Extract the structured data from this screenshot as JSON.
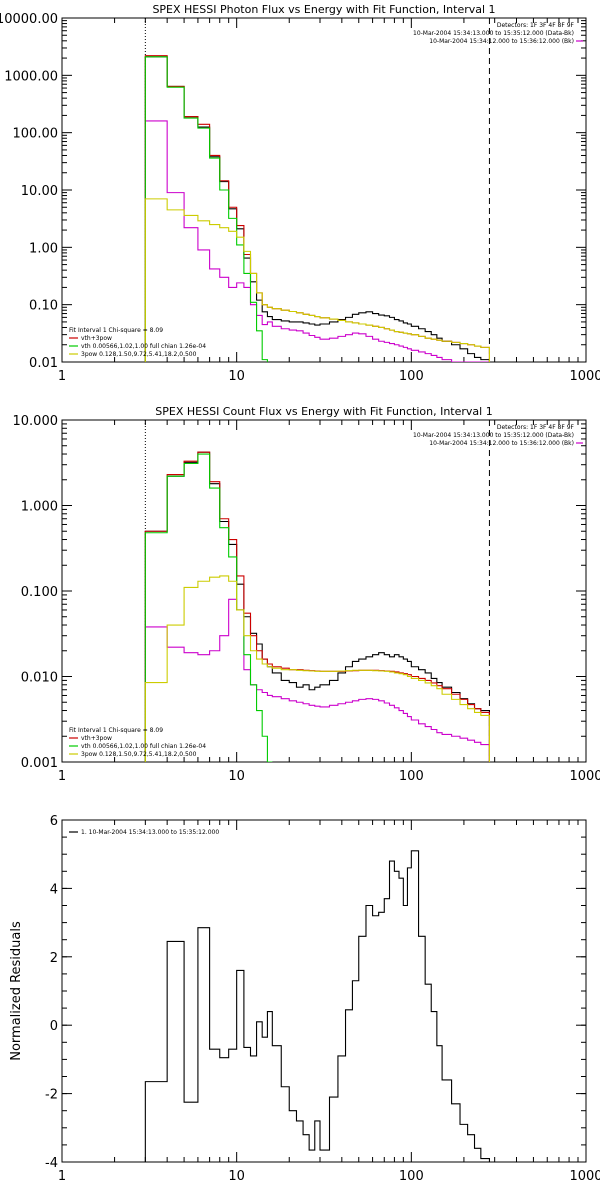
{
  "chart_data": [
    {
      "type": "line",
      "title": "SPEX HESSI Photon Flux vs Energy with Fit Function, Interval 1",
      "xscale": "log",
      "yscale": "log",
      "xlim": [
        1,
        1000
      ],
      "ylim": [
        0.01,
        10000
      ],
      "xticks": [
        {
          "v": 1,
          "label": "1"
        },
        {
          "v": 10,
          "label": "10"
        },
        {
          "v": 100,
          "label": "100"
        },
        {
          "v": 1000,
          "label": "1000"
        }
      ],
      "yticks": [
        {
          "v": 0.01,
          "label": "0.01"
        },
        {
          "v": 0.1,
          "label": "0.10"
        },
        {
          "v": 1,
          "label": "1.00"
        },
        {
          "v": 10,
          "label": "10.00"
        },
        {
          "v": 100,
          "label": "100.00"
        },
        {
          "v": 1000,
          "label": "1000.00"
        },
        {
          "v": 10000,
          "label": "10000.00"
        }
      ],
      "vlines": [
        {
          "x": 3,
          "style": "dotted"
        },
        {
          "x": 280,
          "style": "dashed"
        }
      ],
      "info_text": [
        "Detectors: 1F 3F 4F 8F 9F",
        "10-Mar-2004 15:34:13.000 to 15:35:12.000 (Data-Bk)",
        "10-Mar-2004 15:34:12.000 to 15:36:12.000 (Bk)"
      ],
      "legend_text": [
        "Fit Interval 1   Chi-square = 8.09",
        "vth+3pow",
        "vth 0.00566,1.02,1.00  full chian 1.26e-04",
        "3pow 0.128,1.50,9.72,5.41,18.2,0.500"
      ],
      "legend_colors": [
        "#000000",
        "#cc0000",
        "#00cc00",
        "#cccc00"
      ],
      "bin_edges": [
        3,
        4,
        5,
        6,
        7,
        8,
        9,
        10,
        11,
        12,
        13,
        14,
        15,
        16,
        18,
        20,
        22,
        24,
        26,
        28,
        30,
        34,
        38,
        42,
        46,
        50,
        55,
        60,
        65,
        70,
        75,
        80,
        85,
        90,
        95,
        100,
        110,
        120,
        130,
        140,
        150,
        170,
        190,
        210,
        230,
        250,
        280
      ],
      "series": [
        {
          "name": "Data-Bk",
          "color": "#000000",
          "values": [
            2100,
            640,
            190,
            125,
            38,
            14,
            4.7,
            2.1,
            0.65,
            0.25,
            0.12,
            0.075,
            0.062,
            0.055,
            0.052,
            0.05,
            0.05,
            0.048,
            0.046,
            0.044,
            0.046,
            0.05,
            0.055,
            0.06,
            0.068,
            0.072,
            0.075,
            0.07,
            0.066,
            0.064,
            0.06,
            0.055,
            0.052,
            0.048,
            0.046,
            0.042,
            0.038,
            0.034,
            0.03,
            0.026,
            0.023,
            0.02,
            0.017,
            0.014,
            0.012,
            0.011
          ]
        },
        {
          "name": "Bk",
          "color": "#cc00cc",
          "values": [
            160,
            9,
            2.2,
            0.9,
            0.42,
            0.3,
            0.2,
            0.24,
            0.2,
            0.1,
            0.065,
            0.045,
            0.05,
            0.042,
            0.038,
            0.036,
            0.035,
            0.032,
            0.029,
            0.027,
            0.025,
            0.026,
            0.028,
            0.03,
            0.032,
            0.031,
            0.028,
            0.025,
            0.023,
            0.022,
            0.021,
            0.02,
            0.019,
            0.018,
            0.017,
            0.016,
            0.015,
            0.014,
            0.013,
            0.012,
            0.011,
            0.01,
            0.01,
            0.01,
            0.01,
            0.01
          ]
        },
        {
          "name": "vth+3pow",
          "color": "#cc0000",
          "values": [
            2200,
            640,
            190,
            140,
            40,
            14.5,
            5,
            2.4,
            0.75,
            0.35,
            0.16,
            0.1,
            0.09,
            0.085,
            0.08,
            0.076,
            0.072,
            0.068,
            0.065,
            0.062,
            0.059,
            0.056,
            0.053,
            0.05,
            0.048,
            0.046,
            0.044,
            0.042,
            0.04,
            0.038,
            0.036,
            0.034,
            0.033,
            0.032,
            0.031,
            0.03,
            0.028,
            0.026,
            0.025,
            0.024,
            0.023,
            0.022,
            0.021,
            0.02,
            0.019,
            0.018
          ]
        },
        {
          "name": "vth",
          "color": "#00cc00",
          "values": [
            2100,
            620,
            180,
            120,
            36,
            10,
            3.2,
            1.1,
            0.35,
            0.11,
            0.035,
            0.011
          ]
        },
        {
          "name": "3pow",
          "color": "#cccc00",
          "values": [
            7,
            4.5,
            3.6,
            2.9,
            2.5,
            2.2,
            1.9,
            1.5,
            0.85,
            0.35,
            0.16,
            0.1,
            0.09,
            0.085,
            0.08,
            0.076,
            0.072,
            0.068,
            0.065,
            0.062,
            0.059,
            0.056,
            0.053,
            0.05,
            0.048,
            0.046,
            0.044,
            0.042,
            0.04,
            0.038,
            0.036,
            0.034,
            0.033,
            0.032,
            0.031,
            0.03,
            0.028,
            0.026,
            0.025,
            0.024,
            0.023,
            0.022,
            0.021,
            0.02,
            0.019,
            0.018
          ]
        }
      ]
    },
    {
      "type": "line",
      "title": "SPEX HESSI Count Flux vs Energy with Fit Function, Interval 1",
      "xscale": "log",
      "yscale": "log",
      "xlim": [
        1,
        1000
      ],
      "ylim": [
        0.001,
        10
      ],
      "xticks": [
        {
          "v": 1,
          "label": "1"
        },
        {
          "v": 10,
          "label": "10"
        },
        {
          "v": 100,
          "label": "100"
        },
        {
          "v": 1000,
          "label": "1000"
        }
      ],
      "yticks": [
        {
          "v": 0.001,
          "label": "0.001"
        },
        {
          "v": 0.01,
          "label": "0.010"
        },
        {
          "v": 0.1,
          "label": "0.100"
        },
        {
          "v": 1,
          "label": "1.000"
        },
        {
          "v": 10,
          "label": "10.000"
        }
      ],
      "vlines": [
        {
          "x": 3,
          "style": "dotted"
        },
        {
          "x": 280,
          "style": "dashed"
        }
      ],
      "info_text": [
        "Detectors: 1F 3F 4F 8F 9F",
        "10-Mar-2004 15:34:13.000 to 15:35:12.000 (Data-Bk)",
        "10-Mar-2004 15:34:12.000 to 15:36:12.000 (Bk)"
      ],
      "legend_text": [
        "Fit Interval 1   Chi-square = 8.09",
        "vth+3pow",
        "vth 0.00566,1.02,1.00  full chian 1.26e-04",
        "3pow 0.128,1.50,9.72,5.41,18.2,0.500"
      ],
      "legend_colors": [
        "#000000",
        "#cc0000",
        "#00cc00",
        "#cccc00"
      ],
      "bin_edges": [
        3,
        4,
        5,
        6,
        7,
        8,
        9,
        10,
        11,
        12,
        13,
        14,
        15,
        16,
        18,
        20,
        22,
        24,
        26,
        28,
        30,
        34,
        38,
        42,
        46,
        50,
        55,
        60,
        65,
        70,
        75,
        80,
        85,
        90,
        95,
        100,
        110,
        120,
        130,
        140,
        150,
        170,
        190,
        210,
        230,
        250,
        280
      ],
      "series": [
        {
          "name": "Data-Bk",
          "color": "#000000",
          "values": [
            0.5,
            2.2,
            3.2,
            4.2,
            1.8,
            0.65,
            0.35,
            0.12,
            0.05,
            0.032,
            0.024,
            0.016,
            0.013,
            0.011,
            0.009,
            0.0085,
            0.0075,
            0.008,
            0.007,
            0.0075,
            0.008,
            0.009,
            0.011,
            0.013,
            0.015,
            0.016,
            0.017,
            0.018,
            0.019,
            0.018,
            0.017,
            0.018,
            0.017,
            0.016,
            0.015,
            0.013,
            0.012,
            0.011,
            0.0095,
            0.0085,
            0.0075,
            0.0065,
            0.0055,
            0.0048,
            0.0042,
            0.004
          ]
        },
        {
          "name": "Bk",
          "color": "#cc00cc",
          "values": [
            0.038,
            0.022,
            0.019,
            0.018,
            0.02,
            0.03,
            0.08,
            0.06,
            0.012,
            0.008,
            0.007,
            0.0065,
            0.006,
            0.0058,
            0.0055,
            0.0052,
            0.005,
            0.0048,
            0.0046,
            0.0045,
            0.0044,
            0.0046,
            0.0048,
            0.005,
            0.0052,
            0.0054,
            0.0055,
            0.0054,
            0.0052,
            0.0049,
            0.0046,
            0.0043,
            0.004,
            0.0037,
            0.0034,
            0.0031,
            0.0028,
            0.0026,
            0.0024,
            0.0022,
            0.0021,
            0.002,
            0.0019,
            0.0018,
            0.0017,
            0.0016
          ]
        },
        {
          "name": "vth+3pow",
          "color": "#cc0000",
          "values": [
            0.5,
            2.3,
            3.3,
            4.2,
            1.9,
            0.7,
            0.4,
            0.15,
            0.055,
            0.03,
            0.02,
            0.016,
            0.014,
            0.013,
            0.0125,
            0.012,
            0.012,
            0.0118,
            0.0117,
            0.0116,
            0.0115,
            0.0115,
            0.0115,
            0.0116,
            0.0117,
            0.0118,
            0.0118,
            0.0118,
            0.0117,
            0.0116,
            0.0115,
            0.0113,
            0.011,
            0.0108,
            0.0105,
            0.01,
            0.0095,
            0.009,
            0.0084,
            0.0078,
            0.0072,
            0.0062,
            0.0054,
            0.0047,
            0.0042,
            0.0038
          ]
        },
        {
          "name": "vth",
          "color": "#00cc00",
          "values": [
            0.48,
            2.2,
            3.1,
            4,
            1.6,
            0.55,
            0.25,
            0.06,
            0.018,
            0.008,
            0.004,
            0.002,
            0.001
          ]
        },
        {
          "name": "3pow",
          "color": "#cccc00",
          "values": [
            0.0085,
            0.04,
            0.11,
            0.13,
            0.145,
            0.15,
            0.13,
            0.06,
            0.03,
            0.02,
            0.016,
            0.014,
            0.013,
            0.0125,
            0.012,
            0.012,
            0.0118,
            0.0117,
            0.0116,
            0.0115,
            0.0115,
            0.0115,
            0.0116,
            0.0117,
            0.0118,
            0.0118,
            0.0118,
            0.0117,
            0.0116,
            0.0115,
            0.0113,
            0.011,
            0.0108,
            0.0105,
            0.01,
            0.0095,
            0.009,
            0.0084,
            0.0078,
            0.0072,
            0.0062,
            0.0054,
            0.0047,
            0.0042,
            0.0038,
            0.0035
          ]
        }
      ]
    },
    {
      "type": "line",
      "title": "",
      "xscale": "log",
      "yscale": "linear",
      "xlim": [
        1,
        1000
      ],
      "ylim": [
        -4,
        6
      ],
      "ylabel": "Normalized Residuals",
      "xticks": [
        {
          "v": 1,
          "label": "1"
        },
        {
          "v": 10,
          "label": "10"
        },
        {
          "v": 100,
          "label": "100"
        },
        {
          "v": 1000,
          "label": "1000"
        }
      ],
      "yticks": [
        {
          "v": -4,
          "label": "-4"
        },
        {
          "v": -2,
          "label": "-2"
        },
        {
          "v": 0,
          "label": "0"
        },
        {
          "v": 2,
          "label": "2"
        },
        {
          "v": 4,
          "label": "4"
        },
        {
          "v": 6,
          "label": "6"
        }
      ],
      "legend_text": [
        "1. 10-Mar-2004 15:34:13.000 to 15:35:12.000"
      ],
      "bin_edges": [
        3,
        4,
        5,
        6,
        7,
        8,
        9,
        10,
        11,
        12,
        13,
        14,
        15,
        16,
        18,
        20,
        22,
        24,
        26,
        28,
        30,
        34,
        38,
        42,
        46,
        50,
        55,
        60,
        65,
        70,
        75,
        80,
        85,
        90,
        95,
        100,
        110,
        120,
        130,
        140,
        150,
        170,
        190,
        210,
        230,
        250,
        280
      ],
      "series": [
        {
          "name": "1. 10-Mar-2004 15:34:13.000 to 15:35:12.000",
          "color": "#000000",
          "values": [
            -1.65,
            2.45,
            -2.25,
            2.85,
            -0.7,
            -0.95,
            -0.7,
            1.6,
            -0.65,
            -0.9,
            0.1,
            -0.35,
            0.4,
            -0.6,
            -1.8,
            -2.5,
            -2.8,
            -3.2,
            -3.65,
            -2.8,
            -3.65,
            -2.1,
            -0.9,
            0.45,
            1.3,
            2.6,
            3.5,
            3.2,
            3.3,
            3.7,
            4.8,
            4.5,
            4.3,
            3.5,
            4.6,
            5.1,
            2.6,
            1.2,
            0.4,
            -0.6,
            -1.6,
            -2.3,
            -2.9,
            -3.2,
            -3.6,
            -3.9
          ]
        }
      ]
    }
  ]
}
